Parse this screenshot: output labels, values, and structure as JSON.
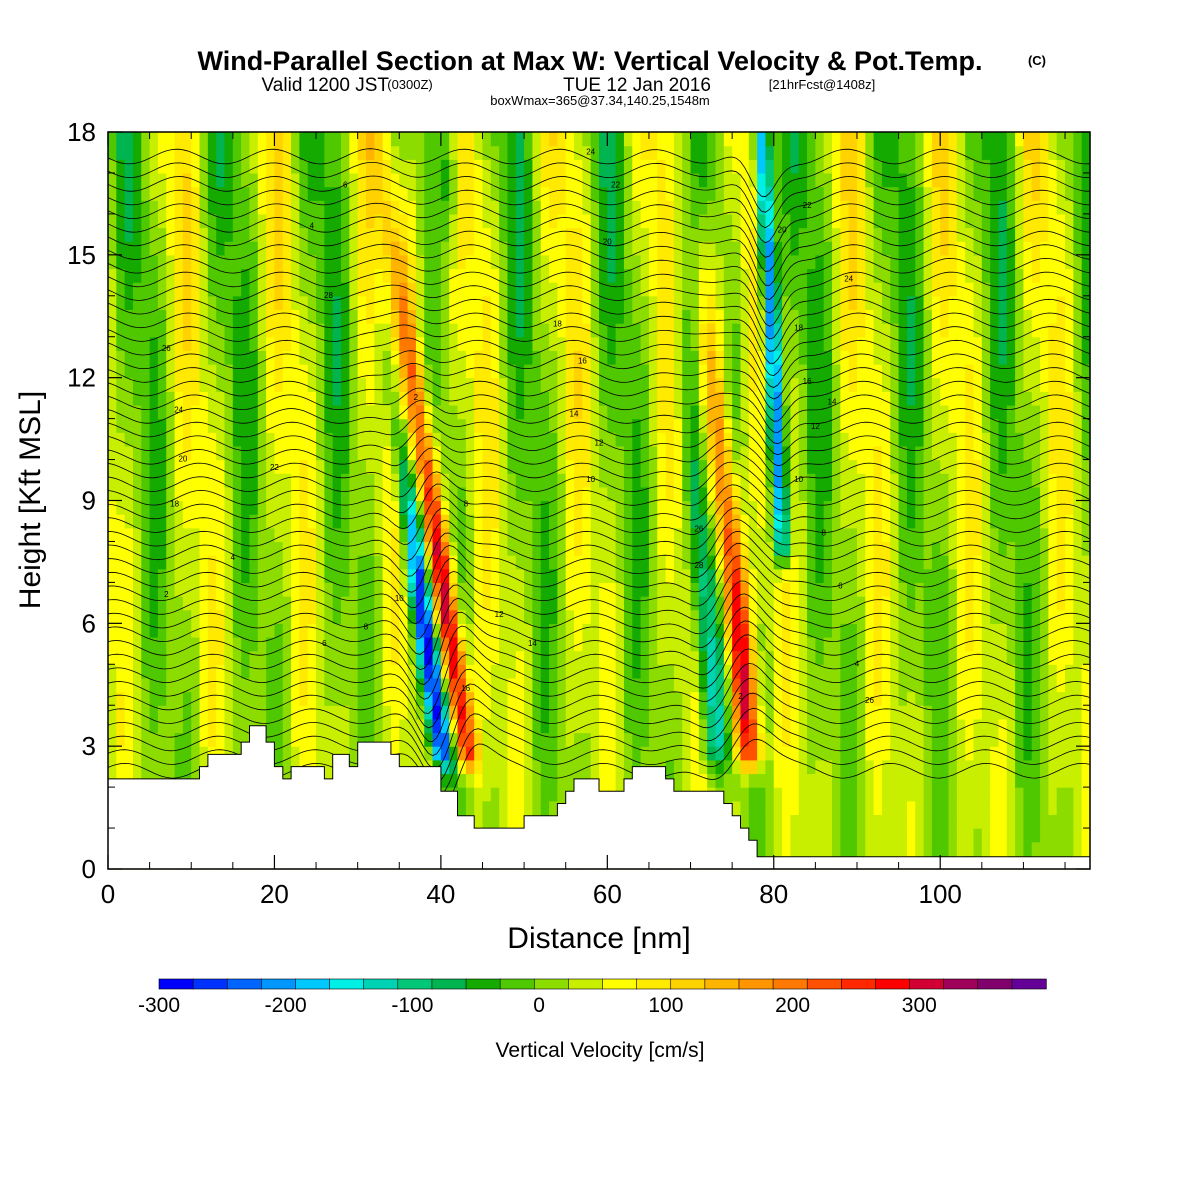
{
  "title": {
    "main": "Wind-Parallel Section at Max W: Vertical Velocity & Pot.Temp.",
    "copyright": "(C)",
    "sub_a": "Valid 1200 JST",
    "sub_b": "(0300Z)",
    "sub_c": "TUE 12 Jan 2016",
    "sub_d": "[21hrFcst@1408z]",
    "sub_e": "boxWmax=365@37.34,140.25,1548m"
  },
  "chart_data": {
    "type": "heatmap",
    "xlabel": "Distance [nm]",
    "ylabel": "Height [Kft MSL]",
    "xlim": [
      0,
      118
    ],
    "ylim": [
      0,
      18
    ],
    "xticks": [
      0,
      20,
      40,
      60,
      80,
      100
    ],
    "yticks": [
      0,
      3,
      6,
      9,
      12,
      15,
      18
    ],
    "colorbar": {
      "title": "Vertical Velocity [cm/s]",
      "range": [
        -300,
        375
      ],
      "step": 25,
      "ticks": [
        -300,
        -200,
        -100,
        0,
        100,
        200,
        300
      ],
      "colors": [
        "#0000ff",
        "#0032ff",
        "#0064ff",
        "#0096ff",
        "#00c8ff",
        "#00f0e6",
        "#00d2b4",
        "#00c878",
        "#00b450",
        "#14aa00",
        "#50c800",
        "#8cdc00",
        "#c8ee00",
        "#ffff00",
        "#ffea00",
        "#ffd200",
        "#ffb400",
        "#ff9600",
        "#ff7800",
        "#ff5000",
        "#ff2800",
        "#ff0000",
        "#d20032",
        "#a0005a",
        "#82006e",
        "#640096"
      ]
    },
    "terrain_kft": [
      [
        0,
        2.2
      ],
      [
        11,
        2.2
      ],
      [
        11,
        2.5
      ],
      [
        12,
        2.5
      ],
      [
        12,
        2.8
      ],
      [
        16,
        2.8
      ],
      [
        16,
        3.1
      ],
      [
        17,
        3.1
      ],
      [
        17,
        3.5
      ],
      [
        19,
        3.5
      ],
      [
        19,
        3.1
      ],
      [
        20,
        3.1
      ],
      [
        20,
        2.5
      ],
      [
        21,
        2.5
      ],
      [
        21,
        2.2
      ],
      [
        22,
        2.2
      ],
      [
        22,
        2.5
      ],
      [
        26,
        2.5
      ],
      [
        26,
        2.2
      ],
      [
        27,
        2.2
      ],
      [
        27,
        2.8
      ],
      [
        29,
        2.8
      ],
      [
        29,
        2.5
      ],
      [
        30,
        2.5
      ],
      [
        30,
        3.1
      ],
      [
        34,
        3.1
      ],
      [
        34,
        2.8
      ],
      [
        35,
        2.8
      ],
      [
        35,
        2.5
      ],
      [
        40,
        2.5
      ],
      [
        40,
        1.9
      ],
      [
        42,
        1.9
      ],
      [
        42,
        1.3
      ],
      [
        44,
        1.3
      ],
      [
        44,
        1.0
      ],
      [
        50,
        1.0
      ],
      [
        50,
        1.3
      ],
      [
        54,
        1.3
      ],
      [
        54,
        1.6
      ],
      [
        55,
        1.6
      ],
      [
        55,
        1.9
      ],
      [
        56,
        1.9
      ],
      [
        56,
        2.2
      ],
      [
        59,
        2.2
      ],
      [
        59,
        1.9
      ],
      [
        62,
        1.9
      ],
      [
        62,
        2.2
      ],
      [
        63,
        2.2
      ],
      [
        63,
        2.5
      ],
      [
        67,
        2.5
      ],
      [
        67,
        2.2
      ],
      [
        68,
        2.2
      ],
      [
        68,
        1.9
      ],
      [
        74,
        1.9
      ],
      [
        74,
        1.6
      ],
      [
        75,
        1.6
      ],
      [
        75,
        1.3
      ],
      [
        76,
        1.3
      ],
      [
        76,
        1.0
      ],
      [
        77,
        1.0
      ],
      [
        77,
        0.7
      ],
      [
        78,
        0.7
      ],
      [
        78,
        0.3
      ],
      [
        118,
        0.3
      ],
      [
        118,
        0
      ]
    ],
    "updrafts": [
      {
        "x_base": 43,
        "z_base": 3,
        "z_peak": 6,
        "w_peak": 300,
        "tilt": -0.7,
        "width": 1.4
      },
      {
        "x_base": 77,
        "z_base": 3,
        "z_peak": 5.5,
        "w_peak": 290,
        "tilt": -0.45,
        "width": 1.5
      }
    ],
    "downdrafts": [
      {
        "x_base": 40,
        "z_base": 3,
        "z_peak": 5,
        "w_peak": -300,
        "tilt": -0.65,
        "width": 1.3
      },
      {
        "x_base": 73,
        "z_base": 3,
        "z_peak": 6,
        "w_peak": -150,
        "tilt": -0.35,
        "width": 1.6
      },
      {
        "x_base": 81,
        "z_base": 8,
        "z_peak": 15,
        "w_peak": -280,
        "tilt": -0.25,
        "width": 1.0
      }
    ],
    "theta_contour_labels": [
      "2",
      "4",
      "6",
      "8",
      "10",
      "12",
      "14",
      "16",
      "18",
      "20",
      "22",
      "24",
      "26",
      "28"
    ]
  }
}
